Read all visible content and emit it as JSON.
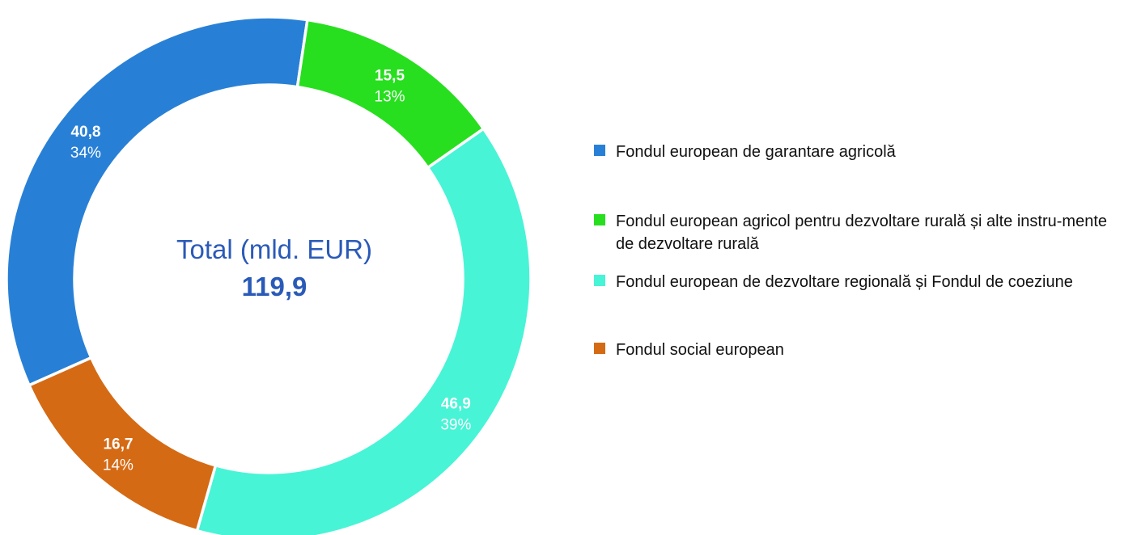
{
  "chart_data": {
    "type": "pie",
    "donut": true,
    "center_title": "Total (mld. EUR)",
    "center_total": "119,9",
    "series": [
      {
        "name": "Fondul european de garantare agricolă",
        "value": 40.8,
        "value_label": "40,8",
        "percent_label": "34%",
        "color": "#2880d6"
      },
      {
        "name": "Fondul european agricol pentru dezvoltare rurală și alte instru-mente de dezvoltare rurală",
        "value": 15.5,
        "value_label": "15,5",
        "percent_label": "13%",
        "color": "#27df1f"
      },
      {
        "name": "Fondul european de dezvoltare regională și Fondul de coeziune",
        "value": 46.9,
        "value_label": "46,9",
        "percent_label": "39%",
        "color": "#47f4d6"
      },
      {
        "name": "Fondul social european",
        "value": 16.7,
        "value_label": "16,7",
        "percent_label": "14%",
        "color": "#d56a14"
      }
    ],
    "legend_position": "right"
  },
  "legend": [
    {
      "label": "Fondul european de garantare agricolă",
      "color": "#2880d6"
    },
    {
      "label": "Fondul european agricol pentru dezvoltare rurală și alte instru-mente de dezvoltare rurală",
      "color": "#27df1f"
    },
    {
      "label": "Fondul european de dezvoltare regională și Fondul de coeziune",
      "color": "#47f4d6"
    },
    {
      "label": "Fondul social european",
      "color": "#d56a14"
    }
  ]
}
